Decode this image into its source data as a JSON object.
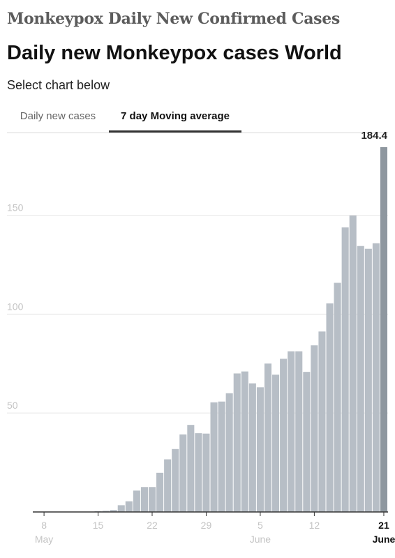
{
  "header": {
    "heading": "Monkeypox Daily New Confirmed Cases",
    "title": "Daily new Monkeypox cases World",
    "subtitle": "Select chart below"
  },
  "tabs": [
    {
      "label": "Daily new cases",
      "active": false
    },
    {
      "label": "7 day Moving average",
      "active": true
    }
  ],
  "colors": {
    "bar": "#b7bec6",
    "highlight_bar": "#8e979f",
    "gridline": "#e6e6e6",
    "tick_label": "#c4c4c4",
    "axis": "#333333"
  },
  "chart_data": {
    "type": "bar",
    "title": "Daily new Monkeypox cases World",
    "xlabel": "",
    "ylabel": "",
    "x": [
      "May 7",
      "May 8",
      "May 9",
      "May 10",
      "May 11",
      "May 12",
      "May 13",
      "May 14",
      "May 15",
      "May 16",
      "May 17",
      "May 18",
      "May 19",
      "May 20",
      "May 21",
      "May 22",
      "May 23",
      "May 24",
      "May 25",
      "May 26",
      "May 27",
      "May 28",
      "May 29",
      "May 30",
      "May 31",
      "Jun 1",
      "Jun 2",
      "Jun 3",
      "Jun 4",
      "Jun 5",
      "Jun 6",
      "Jun 7",
      "Jun 8",
      "Jun 9",
      "Jun 10",
      "Jun 11",
      "Jun 12",
      "Jun 13",
      "Jun 14",
      "Jun 15",
      "Jun 16",
      "Jun 17",
      "Jun 18",
      "Jun 19",
      "Jun 20",
      "Jun 21"
    ],
    "values": [
      0,
      0,
      0,
      0,
      0,
      0,
      0,
      0,
      0.4,
      0.6,
      1,
      3.4,
      5.4,
      10.8,
      12.6,
      12.6,
      19.8,
      26.6,
      31.8,
      39.2,
      44,
      39.8,
      39.6,
      55.4,
      55.8,
      60,
      70,
      71,
      65,
      63,
      75,
      69.4,
      77.4,
      81.2,
      81.2,
      70.8,
      84.2,
      91.2,
      105.4,
      115.8,
      143.8,
      149.8,
      134.4,
      133,
      135.8,
      184.4
    ],
    "highlight_index": 45,
    "data_labels": [
      {
        "index": 45,
        "text": "184.4"
      }
    ],
    "ylim": [
      0,
      190
    ],
    "yticks": [
      50,
      100,
      150
    ],
    "xticks": [
      {
        "index": 1,
        "label": "8",
        "sub": "May",
        "bold": false
      },
      {
        "index": 8,
        "label": "15",
        "sub": "",
        "bold": false
      },
      {
        "index": 15,
        "label": "22",
        "sub": "",
        "bold": false
      },
      {
        "index": 22,
        "label": "29",
        "sub": "",
        "bold": false
      },
      {
        "index": 29,
        "label": "5",
        "sub": "June",
        "bold": false
      },
      {
        "index": 36,
        "label": "12",
        "sub": "",
        "bold": false
      },
      {
        "index": 45,
        "label": "21",
        "sub": "June",
        "bold": true
      }
    ],
    "grid": true
  }
}
